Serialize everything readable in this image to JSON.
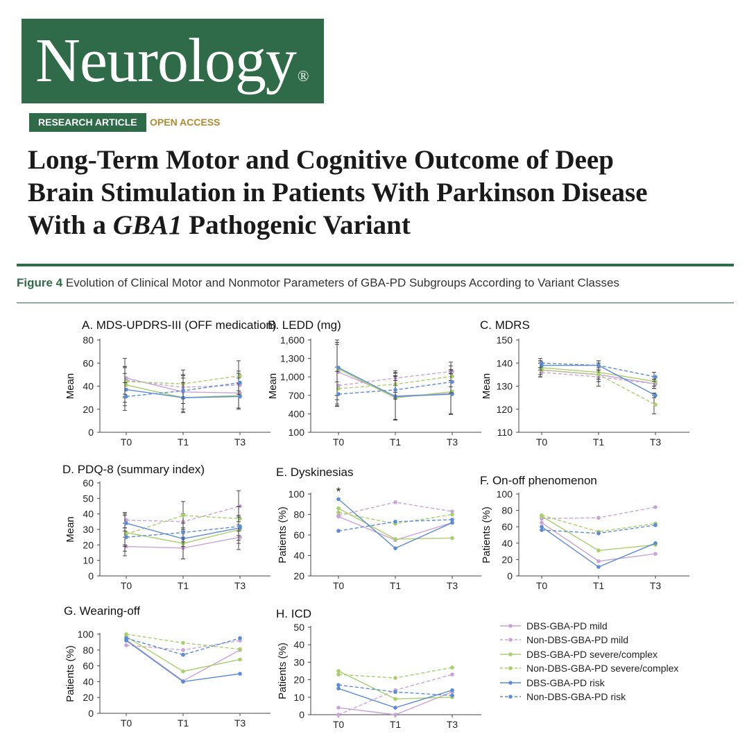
{
  "journal": {
    "name": "Neurology",
    "reg_mark": "®"
  },
  "tags": {
    "type": "RESEARCH ARTICLE",
    "access": "OPEN ACCESS"
  },
  "article": {
    "title_line1": "Long-Term Motor and Cognitive Outcome of Deep",
    "title_line2": "Brain Stimulation in Patients With Parkinson Disease",
    "title_line3_pre": "With a ",
    "title_line3_gene": "GBA1",
    "title_line3_post": " Pathogenic Variant"
  },
  "figure": {
    "label": "Figure 4",
    "caption": "Evolution of Clinical Motor and Nonmotor Parameters of GBA-PD Subgroups According to Variant Classes"
  },
  "colors": {
    "brand": "#2f6b49",
    "accent": "#b08a2e",
    "mild": "#c9a3d6",
    "severe": "#a8cf6a",
    "risk": "#5b8bd6",
    "axis": "#444444",
    "error": "#333333"
  },
  "legend": [
    {
      "label": "DBS-GBA-PD mild",
      "color": "#c9a3d6",
      "dashed": false
    },
    {
      "label": "Non-DBS-GBA-PD mild",
      "color": "#c9a3d6",
      "dashed": true
    },
    {
      "label": "DBS-GBA-PD severe/complex",
      "color": "#a8cf6a",
      "dashed": false
    },
    {
      "label": "Non-DBS-GBA-PD severe/complex",
      "color": "#a8cf6a",
      "dashed": true
    },
    {
      "label": "DBS-GBA-PD risk",
      "color": "#5b8bd6",
      "dashed": false
    },
    {
      "label": "Non-DBS-GBA-PD risk",
      "color": "#5b8bd6",
      "dashed": true
    }
  ],
  "chart_data": [
    {
      "type": "line",
      "panel": "A.",
      "title": "MDS-UPDRS-III (OFF medication)",
      "ylabel": "Mean",
      "categories": [
        "T0",
        "T1",
        "T3"
      ],
      "ylim": [
        0,
        80
      ],
      "yticks": [
        "0",
        "20",
        "40",
        "60",
        "80"
      ],
      "error_bars": true,
      "series": [
        {
          "name": "DBS-GBA-PD mild",
          "values": [
            47,
            35,
            34
          ],
          "err": [
            17,
            15,
            13
          ]
        },
        {
          "name": "Non-DBS-GBA-PD mild",
          "values": [
            45,
            39,
            41
          ],
          "err": [
            12,
            10,
            10
          ]
        },
        {
          "name": "DBS-GBA-PD severe/complex",
          "values": [
            41,
            30,
            32
          ],
          "err": [
            15,
            12,
            11
          ]
        },
        {
          "name": "Non-DBS-GBA-PD severe/complex",
          "values": [
            44,
            42,
            49
          ],
          "err": [
            13,
            12,
            13
          ]
        },
        {
          "name": "DBS-GBA-PD risk",
          "values": [
            37,
            30,
            31
          ],
          "err": [
            14,
            13,
            11
          ]
        },
        {
          "name": "Non-DBS-GBA-PD risk",
          "values": [
            31,
            36,
            43
          ],
          "err": [
            12,
            11,
            10
          ]
        }
      ]
    },
    {
      "type": "line",
      "panel": "B.",
      "title": "LEDD (mg)",
      "ylabel": "Mean",
      "categories": [
        "T0",
        "T1",
        "T3"
      ],
      "ylim": [
        100,
        1600
      ],
      "yticks": [
        "100",
        "400",
        "700",
        "1,000",
        "1,300",
        "1,600"
      ],
      "error_bars": true,
      "series": [
        {
          "name": "DBS-GBA-PD mild",
          "values": [
            1080,
            690,
            730
          ],
          "err": [
            450,
            380,
            330
          ]
        },
        {
          "name": "Non-DBS-GBA-PD mild",
          "values": [
            860,
            980,
            1090
          ],
          "err": [
            300,
            120,
            150
          ]
        },
        {
          "name": "DBS-GBA-PD severe/complex",
          "values": [
            1130,
            660,
            760
          ],
          "err": [
            430,
            360,
            360
          ]
        },
        {
          "name": "Non-DBS-GBA-PD severe/complex",
          "values": [
            810,
            880,
            1010
          ],
          "err": [
            280,
            130,
            170
          ]
        },
        {
          "name": "DBS-GBA-PD risk",
          "values": [
            1150,
            680,
            720
          ],
          "err": [
            450,
            380,
            330
          ]
        },
        {
          "name": "Non-DBS-GBA-PD risk",
          "values": [
            720,
            790,
            920
          ],
          "err": [
            200,
            150,
            180
          ]
        }
      ]
    },
    {
      "type": "line",
      "panel": "C.",
      "title": "MDRS",
      "ylabel": "Mean",
      "categories": [
        "T0",
        "T1",
        "T3"
      ],
      "ylim": [
        110,
        150
      ],
      "yticks": [
        "110",
        "120",
        "130",
        "140",
        "150"
      ],
      "error_bars": true,
      "series": [
        {
          "name": "DBS-GBA-PD mild",
          "values": [
            137,
            135,
            131
          ],
          "err": [
            3,
            3,
            2
          ]
        },
        {
          "name": "Non-DBS-GBA-PD mild",
          "values": [
            136,
            134,
            131
          ],
          "err": [
            2,
            2,
            2
          ]
        },
        {
          "name": "DBS-GBA-PD severe/complex",
          "values": [
            138,
            136,
            132
          ],
          "err": [
            3,
            3,
            2
          ]
        },
        {
          "name": "Non-DBS-GBA-PD severe/complex",
          "values": [
            137,
            135,
            122
          ],
          "err": [
            3,
            5,
            4
          ]
        },
        {
          "name": "DBS-GBA-PD risk",
          "values": [
            139,
            139,
            126
          ],
          "err": [
            2,
            2,
            1
          ]
        },
        {
          "name": "Non-DBS-GBA-PD risk",
          "values": [
            140,
            139,
            134
          ],
          "err": [
            2,
            2,
            2
          ]
        }
      ]
    },
    {
      "type": "line",
      "panel": "D.",
      "title": "PDQ-8 (summary index)",
      "ylabel": "Mean",
      "categories": [
        "T0",
        "T1",
        "T3"
      ],
      "ylim": [
        0,
        60
      ],
      "yticks": [
        "0",
        "10",
        "20",
        "30",
        "40",
        "50",
        "60"
      ],
      "error_bars": true,
      "series": [
        {
          "name": "DBS-GBA-PD mild",
          "values": [
            19,
            18,
            25
          ],
          "err": [
            6,
            7,
            8
          ]
        },
        {
          "name": "Non-DBS-GBA-PD mild",
          "values": [
            36,
            35,
            45
          ],
          "err": [
            5,
            5,
            10
          ]
        },
        {
          "name": "DBS-GBA-PD severe/complex",
          "values": [
            28,
            21,
            30
          ],
          "err": [
            12,
            10,
            9
          ]
        },
        {
          "name": "Non-DBS-GBA-PD severe/complex",
          "values": [
            27,
            39,
            37
          ],
          "err": [
            7,
            9,
            8
          ]
        },
        {
          "name": "DBS-GBA-PD risk",
          "values": [
            34,
            24,
            31
          ],
          "err": [
            5,
            5,
            8
          ]
        },
        {
          "name": "Non-DBS-GBA-PD risk",
          "values": [
            25,
            28,
            32
          ],
          "err": [
            6,
            6,
            6
          ]
        }
      ]
    },
    {
      "type": "line",
      "panel": "E.",
      "title": "Dyskinesias",
      "ylabel": "Patients (%)",
      "categories": [
        "T0",
        "T1",
        "T3"
      ],
      "ylim": [
        20,
        100
      ],
      "yticks": [
        "20",
        "40",
        "60",
        "80",
        "100"
      ],
      "error_bars": false,
      "annotation": "*",
      "series": [
        {
          "name": "DBS-GBA-PD mild",
          "values": [
            78,
            55,
            72
          ]
        },
        {
          "name": "Non-DBS-GBA-PD mild",
          "values": [
            79,
            92,
            83
          ]
        },
        {
          "name": "DBS-GBA-PD severe/complex",
          "values": [
            86,
            56,
            57
          ]
        },
        {
          "name": "Non-DBS-GBA-PD severe/complex",
          "values": [
            82,
            71,
            80
          ]
        },
        {
          "name": "DBS-GBA-PD risk",
          "values": [
            95,
            47,
            72
          ]
        },
        {
          "name": "Non-DBS-GBA-PD risk",
          "values": [
            64,
            73,
            75
          ]
        }
      ]
    },
    {
      "type": "line",
      "panel": "F.",
      "title": "On-off phenomenon",
      "ylabel": "Patients (%)",
      "categories": [
        "T0",
        "T1",
        "T3"
      ],
      "ylim": [
        0,
        100
      ],
      "yticks": [
        "0",
        "20",
        "40",
        "60",
        "80",
        "100"
      ],
      "error_bars": false,
      "series": [
        {
          "name": "DBS-GBA-PD mild",
          "values": [
            65,
            18,
            27
          ]
        },
        {
          "name": "Non-DBS-GBA-PD mild",
          "values": [
            70,
            71,
            84
          ]
        },
        {
          "name": "DBS-GBA-PD severe/complex",
          "values": [
            73,
            31,
            38
          ]
        },
        {
          "name": "Non-DBS-GBA-PD severe/complex",
          "values": [
            74,
            54,
            64
          ]
        },
        {
          "name": "DBS-GBA-PD risk",
          "values": [
            60,
            11,
            40
          ]
        },
        {
          "name": "Non-DBS-GBA-PD risk",
          "values": [
            56,
            52,
            62
          ]
        }
      ]
    },
    {
      "type": "line",
      "panel": "G.",
      "title": "Wearing-off",
      "ylabel": "Patients (%)",
      "categories": [
        "T0",
        "T1",
        "T3"
      ],
      "ylim": [
        0,
        100
      ],
      "yticks": [
        "0",
        "20",
        "40",
        "60",
        "80",
        "100"
      ],
      "error_bars": false,
      "series": [
        {
          "name": "DBS-GBA-PD mild",
          "values": [
            93,
            41,
            80
          ]
        },
        {
          "name": "Non-DBS-GBA-PD mild",
          "values": [
            86,
            80,
            92
          ]
        },
        {
          "name": "DBS-GBA-PD severe/complex",
          "values": [
            97,
            53,
            68
          ]
        },
        {
          "name": "Non-DBS-GBA-PD severe/complex",
          "values": [
            100,
            89,
            81
          ]
        },
        {
          "name": "DBS-GBA-PD risk",
          "values": [
            92,
            40,
            50
          ]
        },
        {
          "name": "Non-DBS-GBA-PD risk",
          "values": [
            95,
            74,
            95
          ]
        }
      ]
    },
    {
      "type": "line",
      "panel": "H.",
      "title": "ICD",
      "ylabel": "Patients (%)",
      "categories": [
        "T0",
        "T1",
        "T3"
      ],
      "ylim": [
        0,
        50
      ],
      "yticks": [
        "0",
        "10",
        "20",
        "30",
        "40",
        "50"
      ],
      "error_bars": false,
      "series": [
        {
          "name": "DBS-GBA-PD mild",
          "values": [
            4,
            0,
            13
          ]
        },
        {
          "name": "Non-DBS-GBA-PD mild",
          "values": [
            0,
            14,
            23
          ]
        },
        {
          "name": "DBS-GBA-PD severe/complex",
          "values": [
            25,
            9,
            10
          ]
        },
        {
          "name": "Non-DBS-GBA-PD severe/complex",
          "values": [
            23,
            21,
            27
          ]
        },
        {
          "name": "DBS-GBA-PD risk",
          "values": [
            15,
            4,
            14
          ]
        },
        {
          "name": "Non-DBS-GBA-PD risk",
          "values": [
            17,
            13,
            11
          ]
        }
      ]
    }
  ]
}
